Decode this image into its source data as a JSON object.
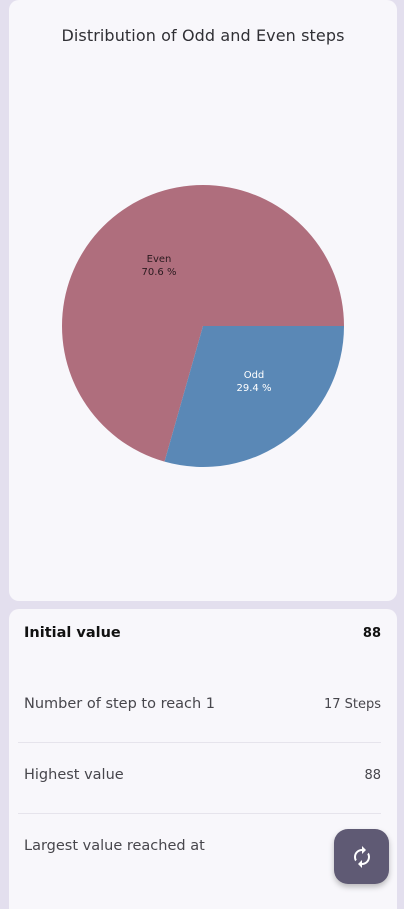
{
  "chart_data": {
    "type": "pie",
    "title": "Distribution of Odd and Even steps",
    "slices": [
      {
        "name": "Even",
        "value": 70.6,
        "label": "70.6 %",
        "color": "#af6e7d"
      },
      {
        "name": "Odd",
        "value": 29.4,
        "label": "29.4 %",
        "color": "#5a88b6"
      }
    ]
  },
  "stats": {
    "initial_value_label": "Initial value",
    "initial_value": "88",
    "steps_label": "Number of step to reach 1",
    "steps_value": "17 Steps",
    "highest_label": "Highest value",
    "highest_value": "88",
    "largest_at_label": "Largest value reached at"
  },
  "fab": {
    "icon": "refresh-icon"
  },
  "colors": {
    "background": "#e3dfee",
    "card": "#f8f7fb",
    "fab": "#5f5a74"
  }
}
